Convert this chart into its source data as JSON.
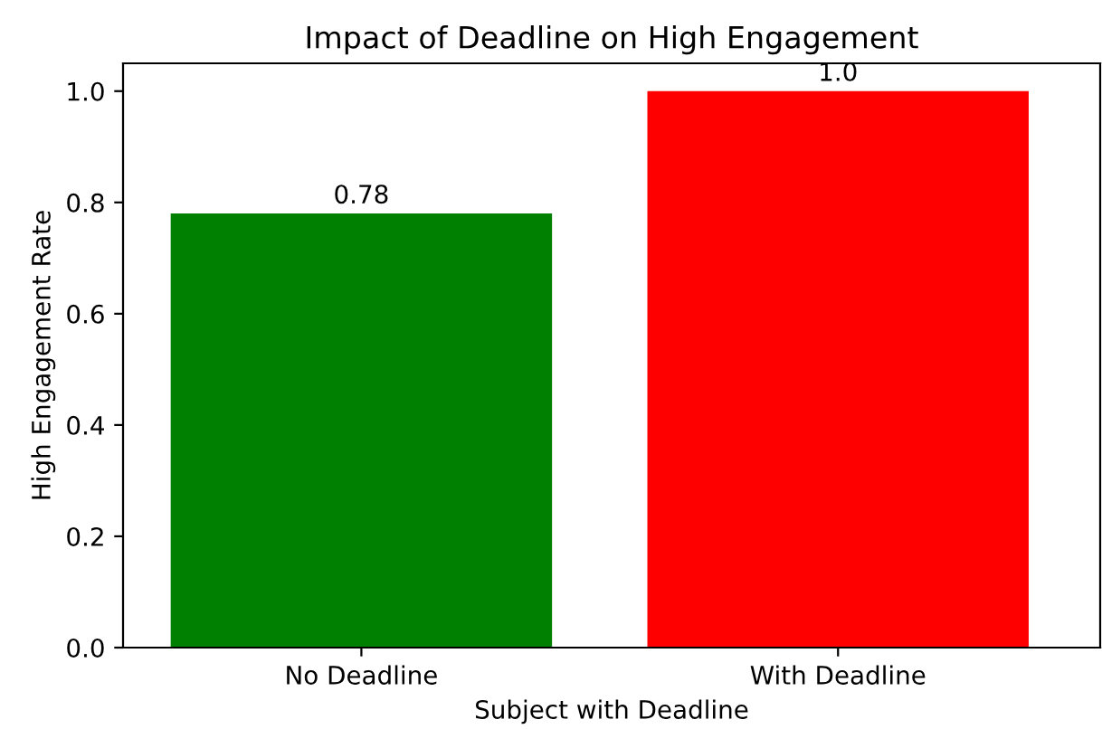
{
  "chart_data": {
    "type": "bar",
    "title": "Impact of Deadline on High Engagement",
    "xlabel": "Subject with Deadline",
    "ylabel": "High Engagement Rate",
    "categories": [
      "No Deadline",
      "With Deadline"
    ],
    "values": [
      0.78,
      1.0
    ],
    "colors": [
      "#008000",
      "#ff0000"
    ],
    "value_labels": [
      "0.78",
      "1.0"
    ],
    "ylim": [
      0,
      1.05
    ],
    "yticks": [
      {
        "value": 0,
        "label": "0.0"
      },
      0.2,
      0.4,
      0.6,
      0.8,
      {
        "value": 1,
        "label": "1.0"
      }
    ],
    "grid": false
  }
}
